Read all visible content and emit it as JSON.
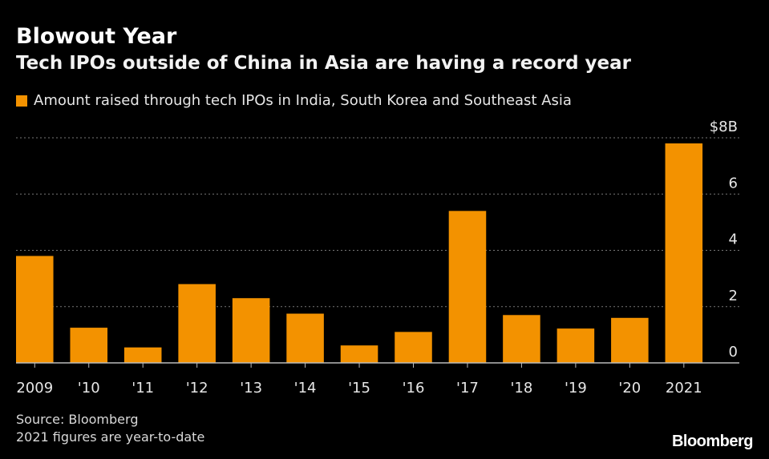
{
  "header": {
    "title": "Blowout Year",
    "subtitle": "Tech IPOs outside of China in Asia are having a record year"
  },
  "footer": {
    "source": "Source: Bloomberg",
    "note": "2021 figures are year-to-date",
    "brand": "Bloomberg"
  },
  "colors": {
    "bar": "#f39200",
    "background": "#000000",
    "grid": "#777777",
    "axis": "#bbbbbb"
  },
  "chart_data": {
    "type": "bar",
    "title": "Blowout Year",
    "subtitle": "Tech IPOs outside of China in Asia are having a record year",
    "legend": "Amount raised through tech IPOs in India, South Korea and Southeast Asia",
    "legend_position": "top-left",
    "categories": [
      "2009",
      "'10",
      "'11",
      "'12",
      "'13",
      "'14",
      "'15",
      "'16",
      "'17",
      "'18",
      "'19",
      "'20",
      "2021"
    ],
    "values": [
      3.8,
      1.25,
      0.55,
      2.8,
      2.3,
      1.75,
      0.62,
      1.1,
      5.4,
      1.7,
      1.22,
      1.6,
      7.8
    ],
    "ylim": [
      0,
      8
    ],
    "yticks": [
      0,
      2,
      4,
      6,
      8
    ],
    "ytick_labels": [
      "0",
      "2",
      "4",
      "6",
      "$8B"
    ],
    "y_axis_side": "right",
    "grid": true,
    "xlabel": "",
    "ylabel": ""
  }
}
